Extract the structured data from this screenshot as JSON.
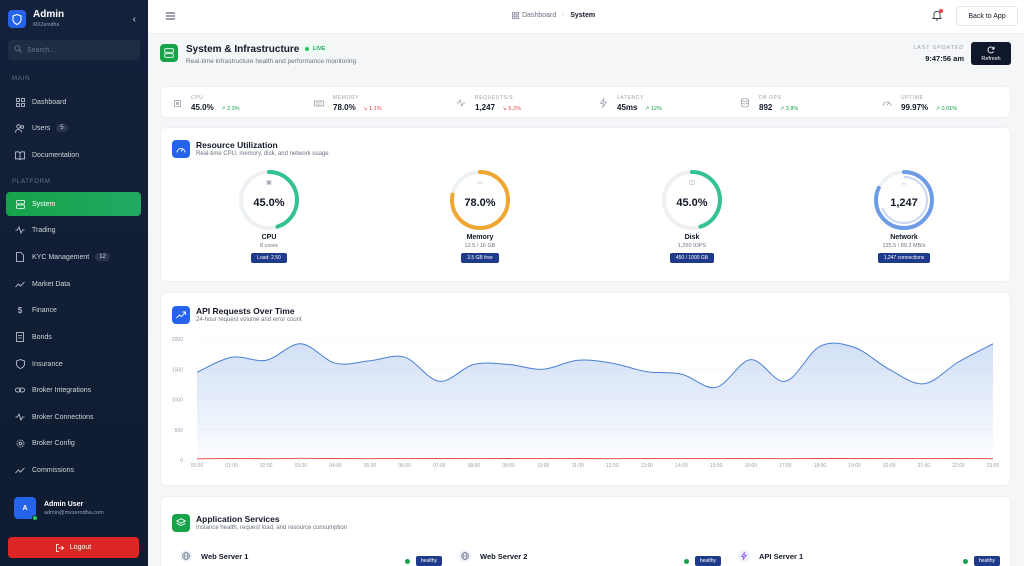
{
  "sidebar": {
    "brand_title": "Admin",
    "brand_sub": "MXZerodha",
    "search_placeholder": "Search...",
    "section_main": "MAIN",
    "section_platform": "PLATFORM",
    "main_items": [
      {
        "label": "Dashboard",
        "icon": "grid-icon"
      },
      {
        "label": "Users",
        "icon": "users-icon",
        "badge": "5"
      },
      {
        "label": "Documentation",
        "icon": "book-icon"
      }
    ],
    "platform_items": [
      {
        "label": "System",
        "icon": "server-icon",
        "active": true
      },
      {
        "label": "Trading",
        "icon": "activity-icon"
      },
      {
        "label": "KYC Management",
        "icon": "file-icon",
        "badge": "12"
      },
      {
        "label": "Market Data",
        "icon": "trend-icon"
      },
      {
        "label": "Finance",
        "icon": "dollar-icon"
      },
      {
        "label": "Bonds",
        "icon": "document-icon"
      },
      {
        "label": "Insurance",
        "icon": "shield-icon"
      },
      {
        "label": "Broker Integrations",
        "icon": "link-icon"
      },
      {
        "label": "Broker Connections",
        "icon": "activity-icon"
      },
      {
        "label": "Broker Config",
        "icon": "gear-icon"
      },
      {
        "label": "Commissions",
        "icon": "trend-icon"
      }
    ],
    "user": {
      "initial": "A",
      "name": "Admin User",
      "email": "admin@mxzerodha.com"
    },
    "logout_label": "Logout"
  },
  "header": {
    "breadcrumb_root": "Dashboard",
    "breadcrumb_current": "System",
    "back_label": "Back to App"
  },
  "page": {
    "title": "System & Infrastructure",
    "live_label": "LIVE",
    "subtitle": "Real-time infrastructure health and performance monitoring",
    "last_updated_label": "LAST UPDATED",
    "last_updated_time": "9:47:56 am",
    "refresh_label": "Refresh"
  },
  "stats": [
    {
      "label": "CPU",
      "value": "45.0%",
      "change": "2.3%",
      "dir": "up"
    },
    {
      "label": "MEMORY",
      "value": "78.0%",
      "change": "1.1%",
      "dir": "down"
    },
    {
      "label": "REQUESTS/S",
      "value": "1,247",
      "change": "5.2%",
      "dir": "down"
    },
    {
      "label": "LATENCY",
      "value": "45ms",
      "change": "12%",
      "dir": "up"
    },
    {
      "label": "DB OPS",
      "value": "892",
      "change": "3.8%",
      "dir": "up"
    },
    {
      "label": "UPTIME",
      "value": "99.97%",
      "change": "0.01%",
      "dir": "up"
    }
  ],
  "resources": {
    "title": "Resource Utilization",
    "subtitle": "Real-time CPU, memory, disk, and network usage",
    "gauges": [
      {
        "value": "45.0%",
        "fraction": 0.45,
        "name": "CPU",
        "detail": "8 cores",
        "tag": "Load: 2.50",
        "color": "#34c38f"
      },
      {
        "value": "78.0%",
        "fraction": 0.78,
        "name": "Memory",
        "detail": "12.5 / 16 GB",
        "tag": "3.5 GB free",
        "color": "#f0a732"
      },
      {
        "value": "45.0%",
        "fraction": 0.45,
        "name": "Disk",
        "detail": "1,250 IOPS",
        "tag": "450 / 1000 GB",
        "color": "#34c38f"
      },
      {
        "value": "1,247",
        "fraction": 0.82,
        "name": "Network",
        "detail": "125.5 / 89.3 MB/s",
        "tag": "1,247 connections",
        "color": "#6f9ce8"
      }
    ]
  },
  "api_chart": {
    "title": "API Requests Over Time",
    "subtitle": "24-hour request volume and error count"
  },
  "chart_data": {
    "type": "area",
    "x": [
      "00:00",
      "01:00",
      "02:00",
      "03:00",
      "04:00",
      "05:00",
      "06:00",
      "07:00",
      "08:00",
      "09:00",
      "10:00",
      "11:00",
      "12:00",
      "13:00",
      "14:00",
      "15:00",
      "16:00",
      "17:00",
      "18:00",
      "19:00",
      "20:00",
      "21:00",
      "22:00",
      "23:00"
    ],
    "y_ticks": [
      "0",
      "500",
      "1000",
      "1500",
      "2000"
    ],
    "ylim": [
      0,
      2000
    ],
    "series": [
      {
        "values": [
          1450,
          1700,
          1650,
          1920,
          1600,
          1640,
          1700,
          1300,
          1580,
          1580,
          1500,
          1650,
          1600,
          1460,
          1420,
          1200,
          1660,
          1300,
          1880,
          1860,
          1500,
          1260,
          1620,
          1920
        ],
        "color": "#4a7fd4"
      },
      {
        "values": [
          20,
          25,
          22,
          28,
          25,
          22,
          26,
          24,
          23,
          25,
          27,
          24,
          22,
          25,
          23,
          26,
          24,
          22,
          25,
          24,
          23,
          26,
          24,
          22
        ],
        "color": "#ef4444"
      }
    ]
  },
  "services": {
    "title": "Application Services",
    "subtitle": "Instance health, request load, and resource consumption",
    "items": [
      {
        "name": "Web Server 1",
        "status": "healthy"
      },
      {
        "name": "Web Server 2",
        "status": "healthy"
      },
      {
        "name": "API Server 1",
        "status": "healthy"
      }
    ]
  }
}
